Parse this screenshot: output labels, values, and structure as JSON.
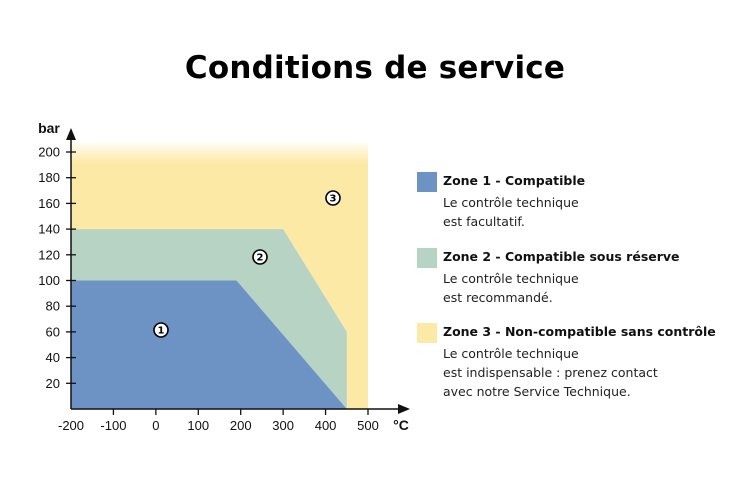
{
  "title": "Conditions de service",
  "chart_data": {
    "type": "area",
    "title": "Conditions de service",
    "xlabel": "°C",
    "ylabel": "bar",
    "xlim": [
      -200,
      500
    ],
    "ylim": [
      0,
      200
    ],
    "x_ticks": [
      -200,
      -100,
      0,
      100,
      200,
      300,
      400,
      500
    ],
    "y_ticks": [
      20,
      40,
      60,
      80,
      100,
      120,
      140,
      160,
      180,
      200
    ],
    "grid": false,
    "legend_position": "right",
    "zones": [
      {
        "name": "Zone 1 - Compatible",
        "marker": "1",
        "color": "#6c93c3",
        "polygon": [
          [
            -200,
            0
          ],
          [
            -200,
            100
          ],
          [
            190,
            100
          ],
          [
            450,
            0
          ]
        ]
      },
      {
        "name": "Zone 2 - Compatible sous réserve",
        "marker": "2",
        "color": "#b6d3c3",
        "polygon": [
          [
            -200,
            100
          ],
          [
            -200,
            140
          ],
          [
            300,
            140
          ],
          [
            450,
            60
          ],
          [
            450,
            0
          ],
          [
            190,
            100
          ]
        ]
      },
      {
        "name": "Zone 3 - Non-compatible sans contrôle",
        "marker": "3",
        "color": "#fde9a6",
        "polygon": [
          [
            -200,
            140
          ],
          [
            -200,
            208
          ],
          [
            500,
            208
          ],
          [
            500,
            0
          ],
          [
            450,
            0
          ],
          [
            450,
            60
          ],
          [
            300,
            140
          ]
        ]
      }
    ]
  },
  "axes": {
    "y_unit": "bar",
    "x_unit": "°C",
    "x_ticks": [
      "-200",
      "-100",
      "0",
      "100",
      "200",
      "300",
      "400",
      "500"
    ],
    "y_ticks": [
      "20",
      "40",
      "60",
      "80",
      "100",
      "120",
      "140",
      "160",
      "180",
      "200"
    ]
  },
  "markers": [
    "1",
    "2",
    "3"
  ],
  "legend": {
    "items": [
      {
        "title": "Zone 1 - Compatible",
        "lines": [
          "Le contrôle technique",
          "est facultatif."
        ],
        "color": "#6c93c3"
      },
      {
        "title": "Zone 2 - Compatible sous réserve",
        "lines": [
          "Le contrôle technique",
          "est recommandé."
        ],
        "color": "#b6d3c3"
      },
      {
        "title": "Zone 3 - Non-compatible sans contrôle",
        "lines": [
          "Le contrôle technique",
          "est indispensable : prenez contact",
          "avec notre Service Technique."
        ],
        "color": "#fde9a6"
      }
    ]
  }
}
